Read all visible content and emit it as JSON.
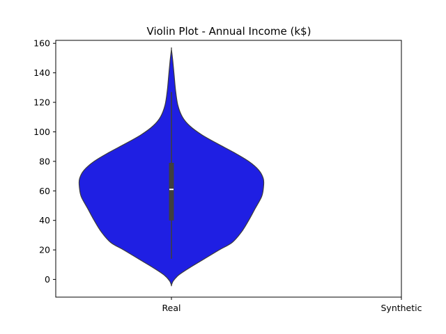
{
  "chart_data": {
    "type": "violin",
    "title": "Violin Plot - Annual Income (k$)",
    "xlabel": "",
    "ylabel": "",
    "categories": [
      "Real",
      "Synthetic"
    ],
    "ylim": [
      -12,
      162
    ],
    "yticks": [
      0,
      20,
      40,
      60,
      80,
      100,
      120,
      140,
      160
    ],
    "grid": false,
    "legend": "none",
    "colors": {
      "violin_fill": "#1f1fe3",
      "violin_edge": "#3a3a3a",
      "box": "#3f3f3f",
      "median": "#ffffff"
    },
    "violins": [
      {
        "category": "Real",
        "density_profile": [
          {
            "y": -4,
            "w": 0.0
          },
          {
            "y": -1,
            "w": 0.02
          },
          {
            "y": 3,
            "w": 0.08
          },
          {
            "y": 8,
            "w": 0.2
          },
          {
            "y": 14,
            "w": 0.36
          },
          {
            "y": 20,
            "w": 0.52
          },
          {
            "y": 25,
            "w": 0.66
          },
          {
            "y": 32,
            "w": 0.76
          },
          {
            "y": 40,
            "w": 0.84
          },
          {
            "y": 48,
            "w": 0.91
          },
          {
            "y": 56,
            "w": 0.98
          },
          {
            "y": 62,
            "w": 1.0
          },
          {
            "y": 68,
            "w": 1.0
          },
          {
            "y": 74,
            "w": 0.95
          },
          {
            "y": 80,
            "w": 0.84
          },
          {
            "y": 86,
            "w": 0.68
          },
          {
            "y": 92,
            "w": 0.5
          },
          {
            "y": 98,
            "w": 0.33
          },
          {
            "y": 104,
            "w": 0.2
          },
          {
            "y": 110,
            "w": 0.12
          },
          {
            "y": 118,
            "w": 0.07
          },
          {
            "y": 128,
            "w": 0.045
          },
          {
            "y": 138,
            "w": 0.03
          },
          {
            "y": 148,
            "w": 0.015
          },
          {
            "y": 156,
            "w": 0.0
          }
        ],
        "whisker_low": 14,
        "q1": 40,
        "median": 61,
        "q3": 79,
        "whisker_high": 127
      }
    ]
  }
}
